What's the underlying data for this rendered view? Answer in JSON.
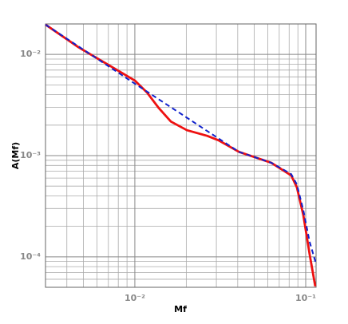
{
  "chart_data": {
    "type": "line",
    "xlabel": "Mf",
    "ylabel": "A(Mf)",
    "log_x": true,
    "log_y": true,
    "grid": true,
    "xlim": [
      0.003,
      0.115
    ],
    "ylim": [
      5e-05,
      0.02
    ],
    "xticks": [
      {
        "value": 0.01,
        "label": "10⁻²"
      },
      {
        "value": 0.1,
        "label": "10⁻¹"
      }
    ],
    "yticks": [
      {
        "value": 0.0001,
        "label": "10⁻⁴"
      },
      {
        "value": 0.001,
        "label": "10⁻³"
      },
      {
        "value": 0.01,
        "label": "10⁻²"
      }
    ],
    "minor_xticks": [
      0.003,
      0.004,
      0.005,
      0.006,
      0.007,
      0.008,
      0.009,
      0.02,
      0.03,
      0.04,
      0.05,
      0.06,
      0.07,
      0.08,
      0.09
    ],
    "minor_yticks": [
      6e-05,
      7e-05,
      8e-05,
      9e-05,
      0.0002,
      0.0003,
      0.0004,
      0.0005,
      0.0006,
      0.0007,
      0.0008,
      0.0009,
      0.002,
      0.003,
      0.004,
      0.005,
      0.006,
      0.007,
      0.008,
      0.009
    ],
    "series": [
      {
        "color": "#ee1111",
        "dash": false,
        "x": [
          0.003,
          0.00469,
          0.00723,
          0.01,
          0.01176,
          0.01383,
          0.01626,
          0.0202,
          0.0265,
          0.0311,
          0.0407,
          0.0628,
          0.0822,
          0.0887,
          0.0968,
          0.1055,
          0.1138
        ],
        "values": [
          0.0197,
          0.01175,
          0.00763,
          0.00552,
          0.00422,
          0.00294,
          0.00217,
          0.00178,
          0.00157,
          0.00141,
          0.00109,
          0.000851,
          0.000638,
          0.000487,
          0.000259,
          0.000105,
          5.1e-05
        ]
      },
      {
        "color": "#1122cc",
        "dash": true,
        "x": [
          0.003,
          0.01,
          0.02,
          0.0407,
          0.0628,
          0.0822,
          0.0887,
          0.0968,
          0.1055,
          0.115
        ],
        "values": [
          0.0197,
          0.00514,
          0.00239,
          0.00109,
          0.000851,
          0.000657,
          0.00052,
          0.00029,
          0.00014,
          8.5e-05
        ]
      }
    ]
  }
}
